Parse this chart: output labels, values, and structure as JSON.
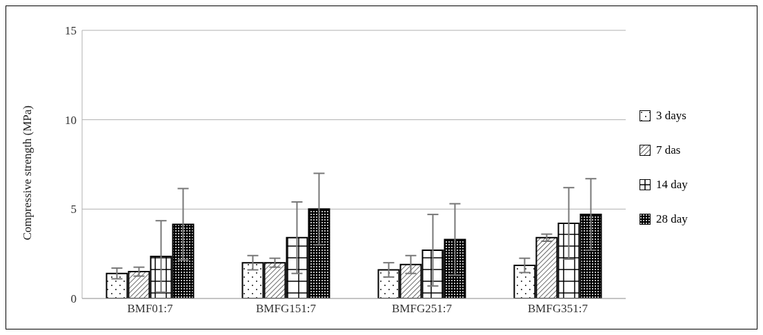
{
  "chart_data": {
    "type": "bar",
    "ylabel": "Compressive strength (MPa)",
    "categories": [
      "BMF01:7",
      "BMFG151:7",
      "BMFG251:7",
      "BMFG351:7"
    ],
    "series": [
      {
        "name": "3 days",
        "color": "#000000",
        "values": [
          1.4,
          2.0,
          1.6,
          1.85
        ],
        "errors": [
          0.3,
          0.4,
          0.4,
          0.4
        ]
      },
      {
        "name": "7 das",
        "color": "#000000",
        "values": [
          1.5,
          2.0,
          1.9,
          3.4
        ],
        "errors": [
          0.25,
          0.25,
          0.5,
          0.2
        ]
      },
      {
        "name": "14 day",
        "color": "#000000",
        "values": [
          2.35,
          3.4,
          2.7,
          4.2
        ],
        "errors": [
          2.0,
          2.0,
          2.0,
          2.0
        ]
      },
      {
        "name": "28 day",
        "color": "#000000",
        "values": [
          4.15,
          5.0,
          3.3,
          4.7
        ],
        "errors": [
          2.0,
          2.0,
          2.0,
          2.0
        ]
      }
    ],
    "ylim": [
      0,
      15
    ],
    "yticks": [
      0,
      5,
      10,
      15
    ],
    "grid": "y",
    "legend": "right"
  }
}
